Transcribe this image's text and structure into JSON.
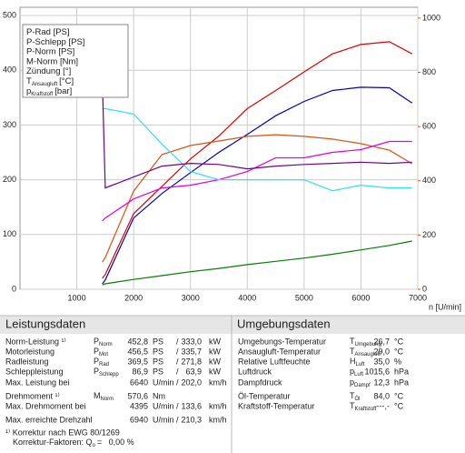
{
  "chart_data": {
    "type": "line",
    "x_label": "n [U/min]",
    "x": [
      1450,
      1500,
      2000,
      2500,
      3000,
      3500,
      4000,
      4500,
      5000,
      5500,
      6000,
      6500,
      6900
    ],
    "xlim": [
      0,
      7000
    ],
    "xticks": [
      1000,
      2000,
      3000,
      4000,
      5000,
      6000,
      7000
    ],
    "ylim": [
      0,
      515
    ],
    "yticks": [
      0,
      100,
      200,
      300,
      400,
      500
    ],
    "y2lim": [
      0,
      1040
    ],
    "y2ticks": [
      0,
      200,
      400,
      600,
      800,
      1000
    ],
    "y2color": "#e05010",
    "grid": true,
    "series": [
      {
        "name": "P-Rad [PS]",
        "color": "#0000c0",
        "values": [
          10,
          17,
          130,
          175,
          213,
          250,
          283,
          317,
          343,
          363,
          369,
          368,
          340
        ]
      },
      {
        "name": "P-Schlepp [PS]",
        "color": "#008000",
        "values": [
          8,
          10,
          18,
          25,
          32,
          38,
          45,
          51,
          57,
          64,
          72,
          80,
          88
        ]
      },
      {
        "name": "P-Norm [PS]",
        "color": "#e00000",
        "values": [
          20,
          27,
          138,
          188,
          238,
          280,
          330,
          363,
          397,
          430,
          447,
          452,
          430
        ]
      },
      {
        "name": "M-Norm [Nm]",
        "color": "#e05010",
        "axis": "y2",
        "values": [
          100,
          117,
          362,
          497,
          530,
          547,
          564,
          570,
          564,
          554,
          537,
          513,
          463
        ]
      },
      {
        "name": "Zündung [°]",
        "color": "#e000e0",
        "values": [
          125,
          130,
          165,
          185,
          190,
          200,
          215,
          240,
          240,
          250,
          255,
          270,
          270
        ]
      },
      {
        "name": "T",
        "name_sub": "Ansaugluft",
        "name_unit": "[°C]",
        "color": "#30e0f0",
        "values": [
          330,
          330,
          320,
          265,
          215,
          200,
          200,
          200,
          200,
          180,
          190,
          185,
          185
        ]
      },
      {
        "name": "p",
        "name_sub": "Kraftstoff",
        "name_unit": "[bar]",
        "color": "#700090",
        "values": [
          380,
          185,
          205,
          225,
          230,
          228,
          220,
          225,
          228,
          230,
          232,
          230,
          232
        ]
      }
    ]
  },
  "table": {
    "left_title": "Leistungsdaten",
    "right_title": "Umgebungsdaten",
    "left_rows": [
      {
        "label": "Norm-Leistung ¹⁾",
        "sym": "P",
        "sub": "Norm",
        "v1": "452,8",
        "u1": "PS",
        "sep": "/",
        "v2": "333,0",
        "u2": "kW",
        "color": "#e00000"
      },
      {
        "label": "Motorleistung",
        "sym": "P",
        "sub": "Mot",
        "v1": "456,5",
        "u1": "PS",
        "sep": "/",
        "v2": "335,7",
        "u2": "kW",
        "color": "#e00000"
      },
      {
        "label": "Radleistung",
        "sym": "P",
        "sub": "Rad",
        "v1": "369,5",
        "u1": "PS",
        "sep": "/",
        "v2": "271,8",
        "u2": "kW",
        "color": "#0000c0"
      },
      {
        "label": "Schleppleistung",
        "sym": "P",
        "sub": "Schlepp",
        "v1": "86,9",
        "u1": "PS",
        "sep": "/",
        "v2": "63,9",
        "u2": "kW",
        "color": "#008000"
      },
      {
        "label": "Max. Leistung bei",
        "v1": "6640",
        "u1": "U/min",
        "sep": "/",
        "v2": "202,0",
        "u2": "km/h",
        "color": "#202020"
      },
      {
        "label": "Drehmoment ¹⁾",
        "sym": "M",
        "sub": "Norm",
        "v1": "570,6",
        "u1": "Nm",
        "color": "#e05010"
      },
      {
        "label": "Max. Drehmoment bei",
        "v1": "4395",
        "u1": "U/min",
        "sep": "/",
        "v2": "133,6",
        "u2": "km/h",
        "color": "#202020"
      },
      {
        "label": "Max. erreichte Drehzahl",
        "v1": "6940",
        "u1": "U/min",
        "sep": "/",
        "v2": "210,3",
        "u2": "km/h",
        "color": "#202020"
      }
    ],
    "footnote": "¹⁾ Korrektur nach EWG 80/1269",
    "factor_label": "Korrektur-Faktoren: Q",
    "factor_sub": "o",
    "factor_value": "=   0,00 %",
    "right_rows": [
      {
        "label": "Umgebungs-Temperatur",
        "sym": "T",
        "sub": "Umgebung",
        "v": "26,7",
        "u": "°C"
      },
      {
        "label": "Ansaugluft-Temperatur",
        "sym": "T",
        "sub": "Ansaugluft",
        "v": "29,0",
        "u": "°C"
      },
      {
        "label": "Relative Luftfeuchte",
        "sym": "H",
        "sub": "Luft",
        "v": "35,0",
        "u": "%"
      },
      {
        "label": "Luftdruck",
        "sym": "p",
        "sub": "Luft",
        "v": "1015,6",
        "u": "hPa"
      },
      {
        "label": "Dampfdruck",
        "sym": "p",
        "sub": "Dampf",
        "v": "12,3",
        "u": "hPa"
      },
      {
        "label": "Öl-Temperatur",
        "sym": "T",
        "sub": "Öl",
        "v": "84,0",
        "u": "°C"
      },
      {
        "label": "Kraftstoff-Temperatur",
        "sym": "T",
        "sub": "Kraftstoff",
        "v": "---,-",
        "u": "°C"
      }
    ]
  }
}
